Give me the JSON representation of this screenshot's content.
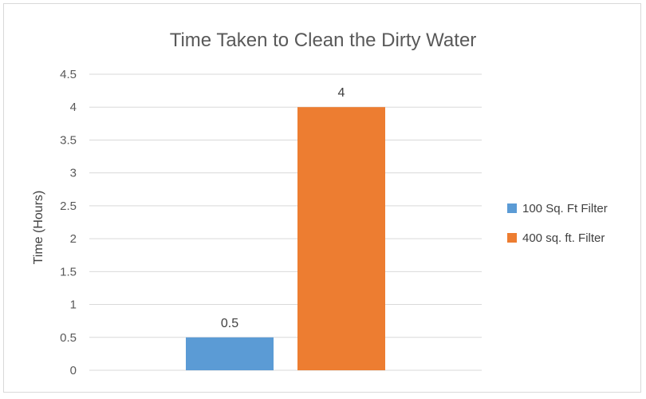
{
  "chart_data": {
    "type": "bar",
    "title": "Time Taken to Clean the Dirty Water",
    "ylabel": "Time (Hours)",
    "xlabel": "",
    "ylim": [
      0,
      4.5
    ],
    "yticks": [
      "0",
      "0.5",
      "1",
      "1.5",
      "2",
      "2.5",
      "3",
      "3.5",
      "4",
      "4.5"
    ],
    "grid": true,
    "legend_position": "right",
    "series": [
      {
        "name": "100 Sq. Ft Filter",
        "value": 0.5,
        "label": "0.5",
        "color": "#5b9bd5"
      },
      {
        "name": "400 sq. ft. Filter",
        "value": 4,
        "label": "4",
        "color": "#ed7d31"
      }
    ]
  }
}
